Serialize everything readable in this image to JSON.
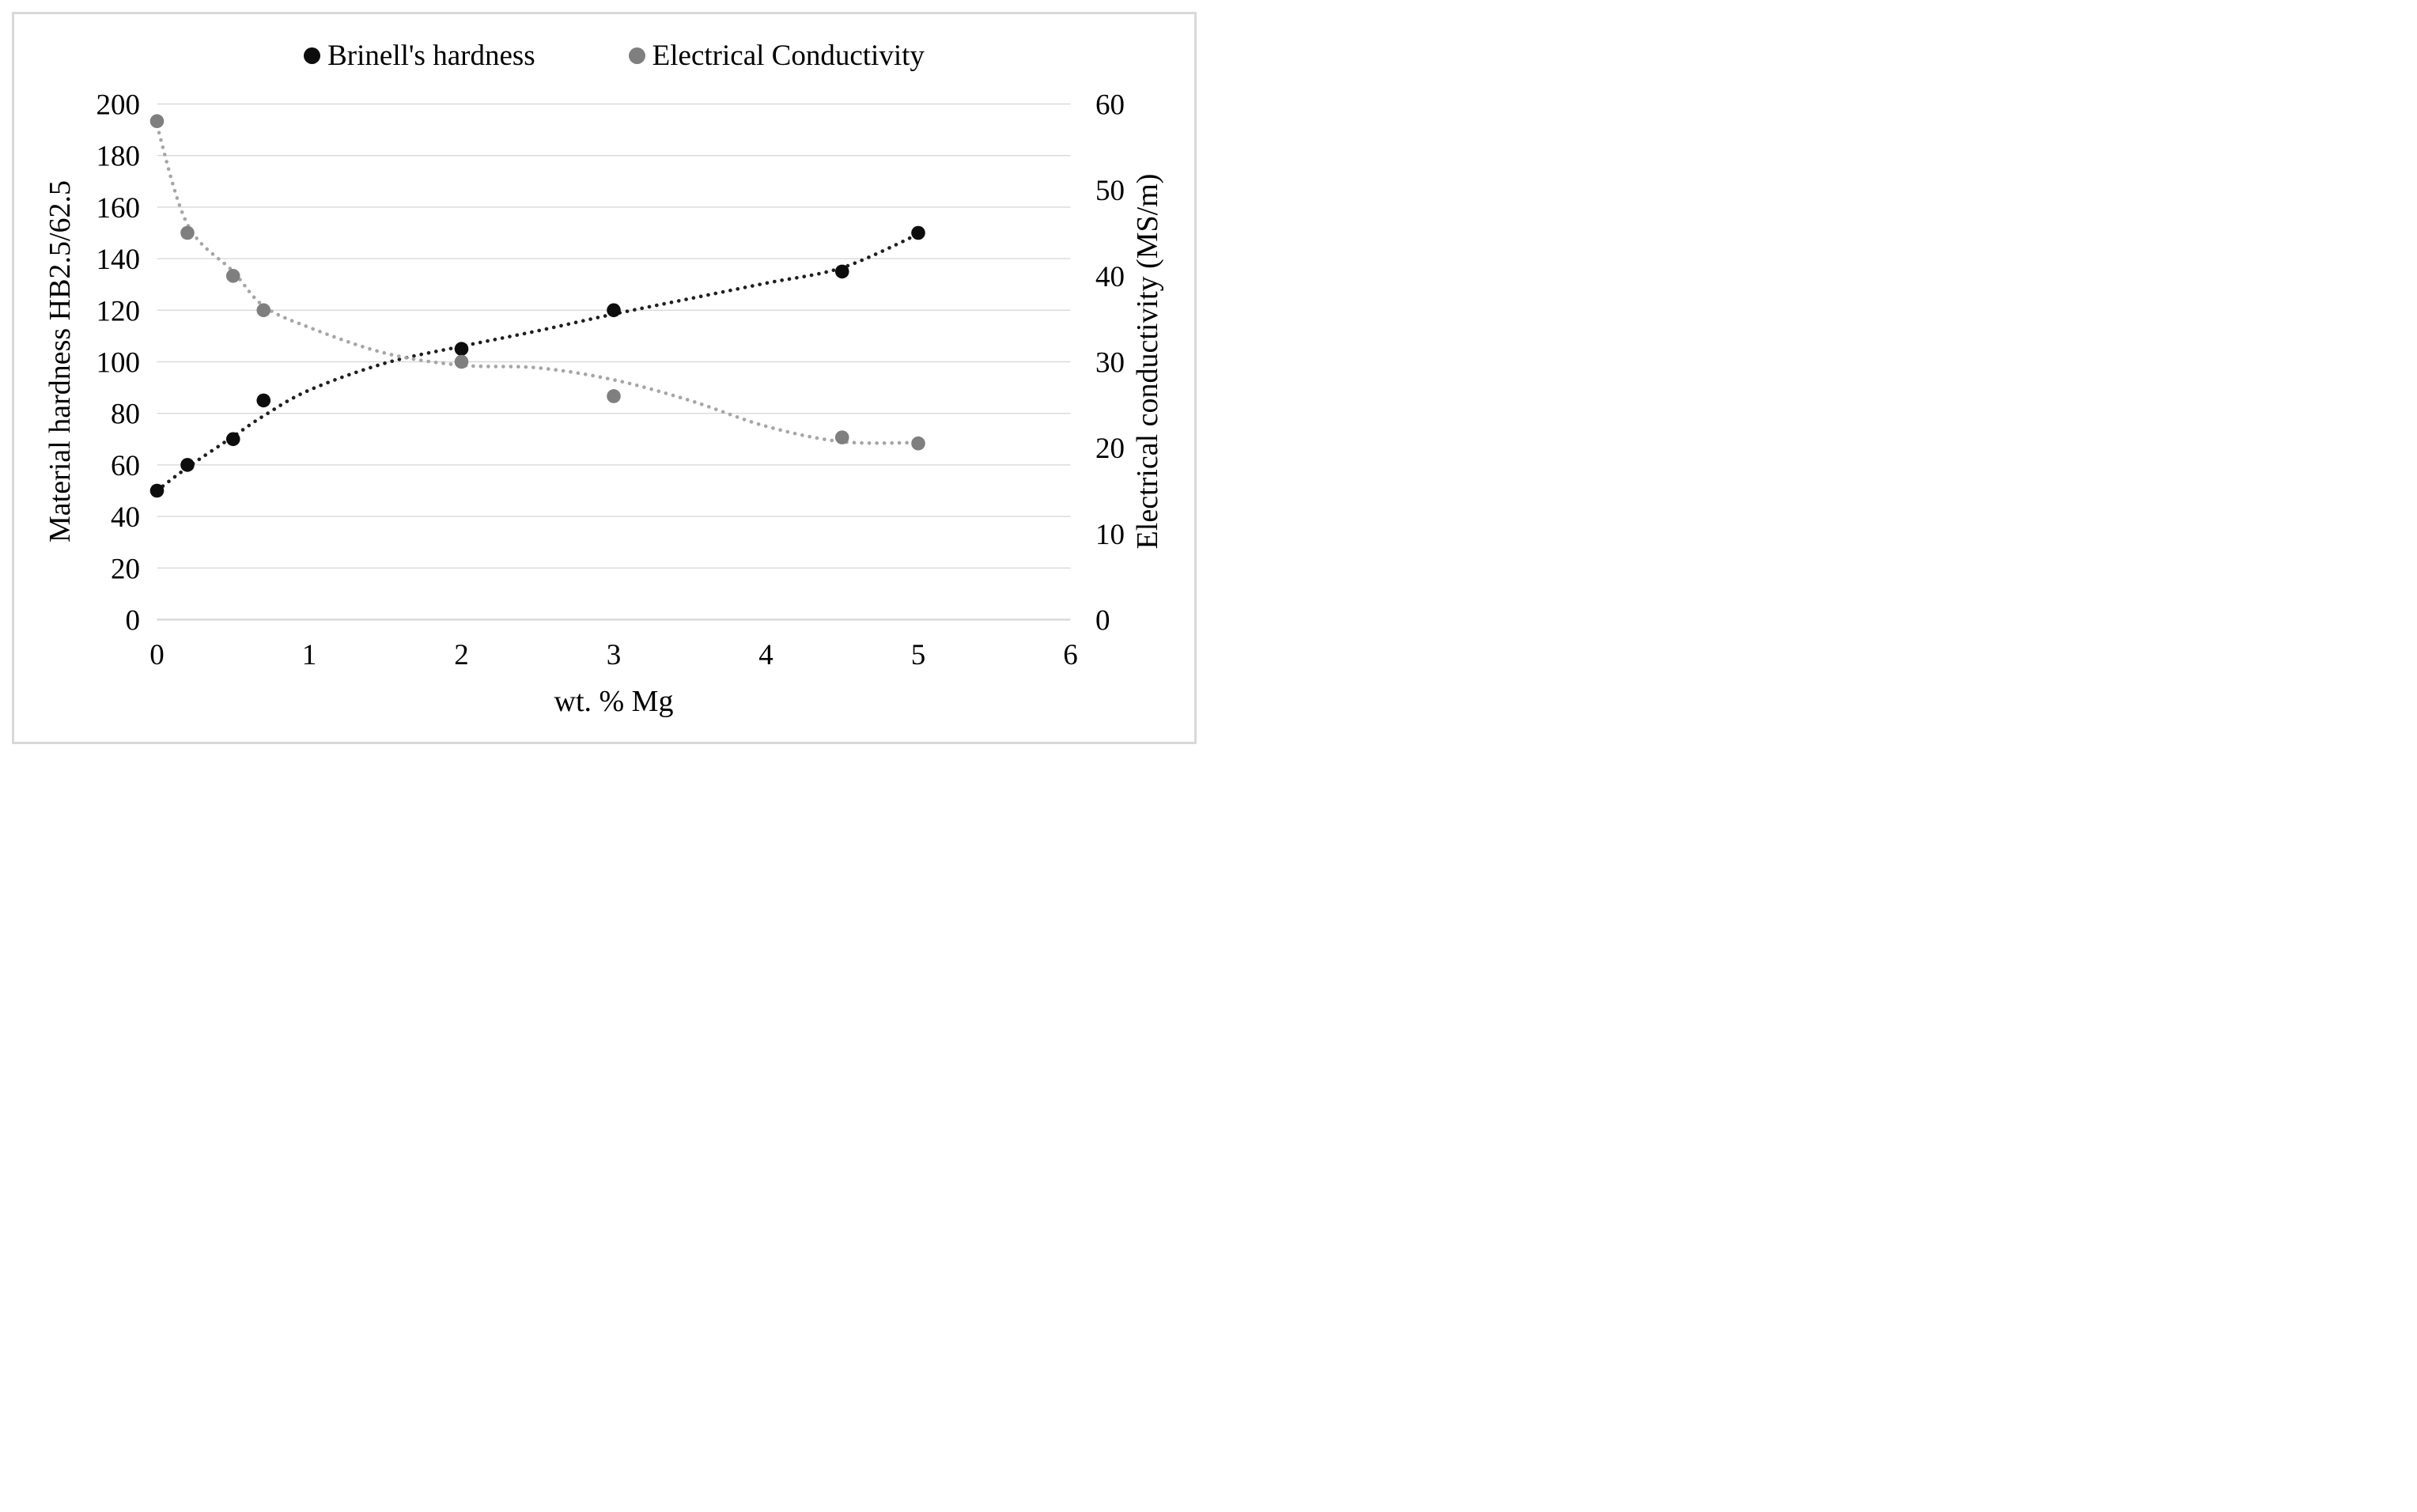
{
  "figure": {
    "background": "#ffffff",
    "border_color": "#d9d9d9"
  },
  "legend": {
    "items": [
      {
        "label": "Brinell's hardness",
        "marker": "black-dot",
        "color": "#0d0d0d"
      },
      {
        "label": "Electrical Conductivity",
        "marker": "gray-dot",
        "color": "#7f7f7f"
      }
    ]
  },
  "chart_data": {
    "type": "scatter",
    "x": [
      0,
      0.2,
      0.5,
      0.7,
      2,
      3,
      4.5,
      5
    ],
    "series": [
      {
        "name": "Brinell's hardness",
        "axis": "left",
        "marker_color": "#0d0d0d",
        "trend_color": "#1f1f1f",
        "values": [
          50,
          60,
          70,
          85,
          105,
          120,
          135,
          150
        ],
        "trend_style": "dotted",
        "trend_samples": {
          "x": [
            0,
            0.2,
            0.5,
            0.7,
            1,
            1.5,
            2,
            2.5,
            3,
            3.5,
            4,
            4.5,
            5
          ],
          "v": [
            50,
            59,
            71,
            79,
            89,
            99.5,
            106,
            112,
            118.5,
            124.5,
            130.5,
            136.5,
            149.5
          ]
        }
      },
      {
        "name": "Electrical Conductivity",
        "axis": "right",
        "marker_color": "#7f7f7f",
        "trend_color": "#a6a6a6",
        "values": [
          58,
          45,
          40,
          36,
          30,
          26,
          21.2,
          20.5
        ],
        "trend_style": "dotted",
        "trend_samples": {
          "x": [
            0,
            0.2,
            0.5,
            0.7,
            1,
            1.5,
            2,
            2.5,
            3,
            3.5,
            4,
            4.5,
            5
          ],
          "v": [
            57.5,
            46,
            40.5,
            36.5,
            34,
            31,
            29.6,
            29.3,
            27.9,
            25.5,
            22.5,
            20.7,
            20.6
          ]
        }
      }
    ],
    "left_axis": {
      "title": "Material hardness HB2.5/62.5",
      "min": 0,
      "max": 200,
      "step": 20,
      "ticks": [
        0,
        20,
        40,
        60,
        80,
        100,
        120,
        140,
        160,
        180,
        200
      ]
    },
    "right_axis": {
      "title": "Electrical conductivity (MS/m)",
      "min": 0,
      "max": 60,
      "step": 10,
      "ticks": [
        0,
        10,
        20,
        30,
        40,
        50,
        60
      ]
    },
    "x_axis": {
      "title": "wt. % Mg",
      "min": 0,
      "max": 6,
      "step": 1,
      "ticks": [
        0,
        1,
        2,
        3,
        4,
        5,
        6
      ]
    },
    "grid": "horizontal",
    "gridline_color": "#d9d9d9",
    "legend_position": "top"
  }
}
